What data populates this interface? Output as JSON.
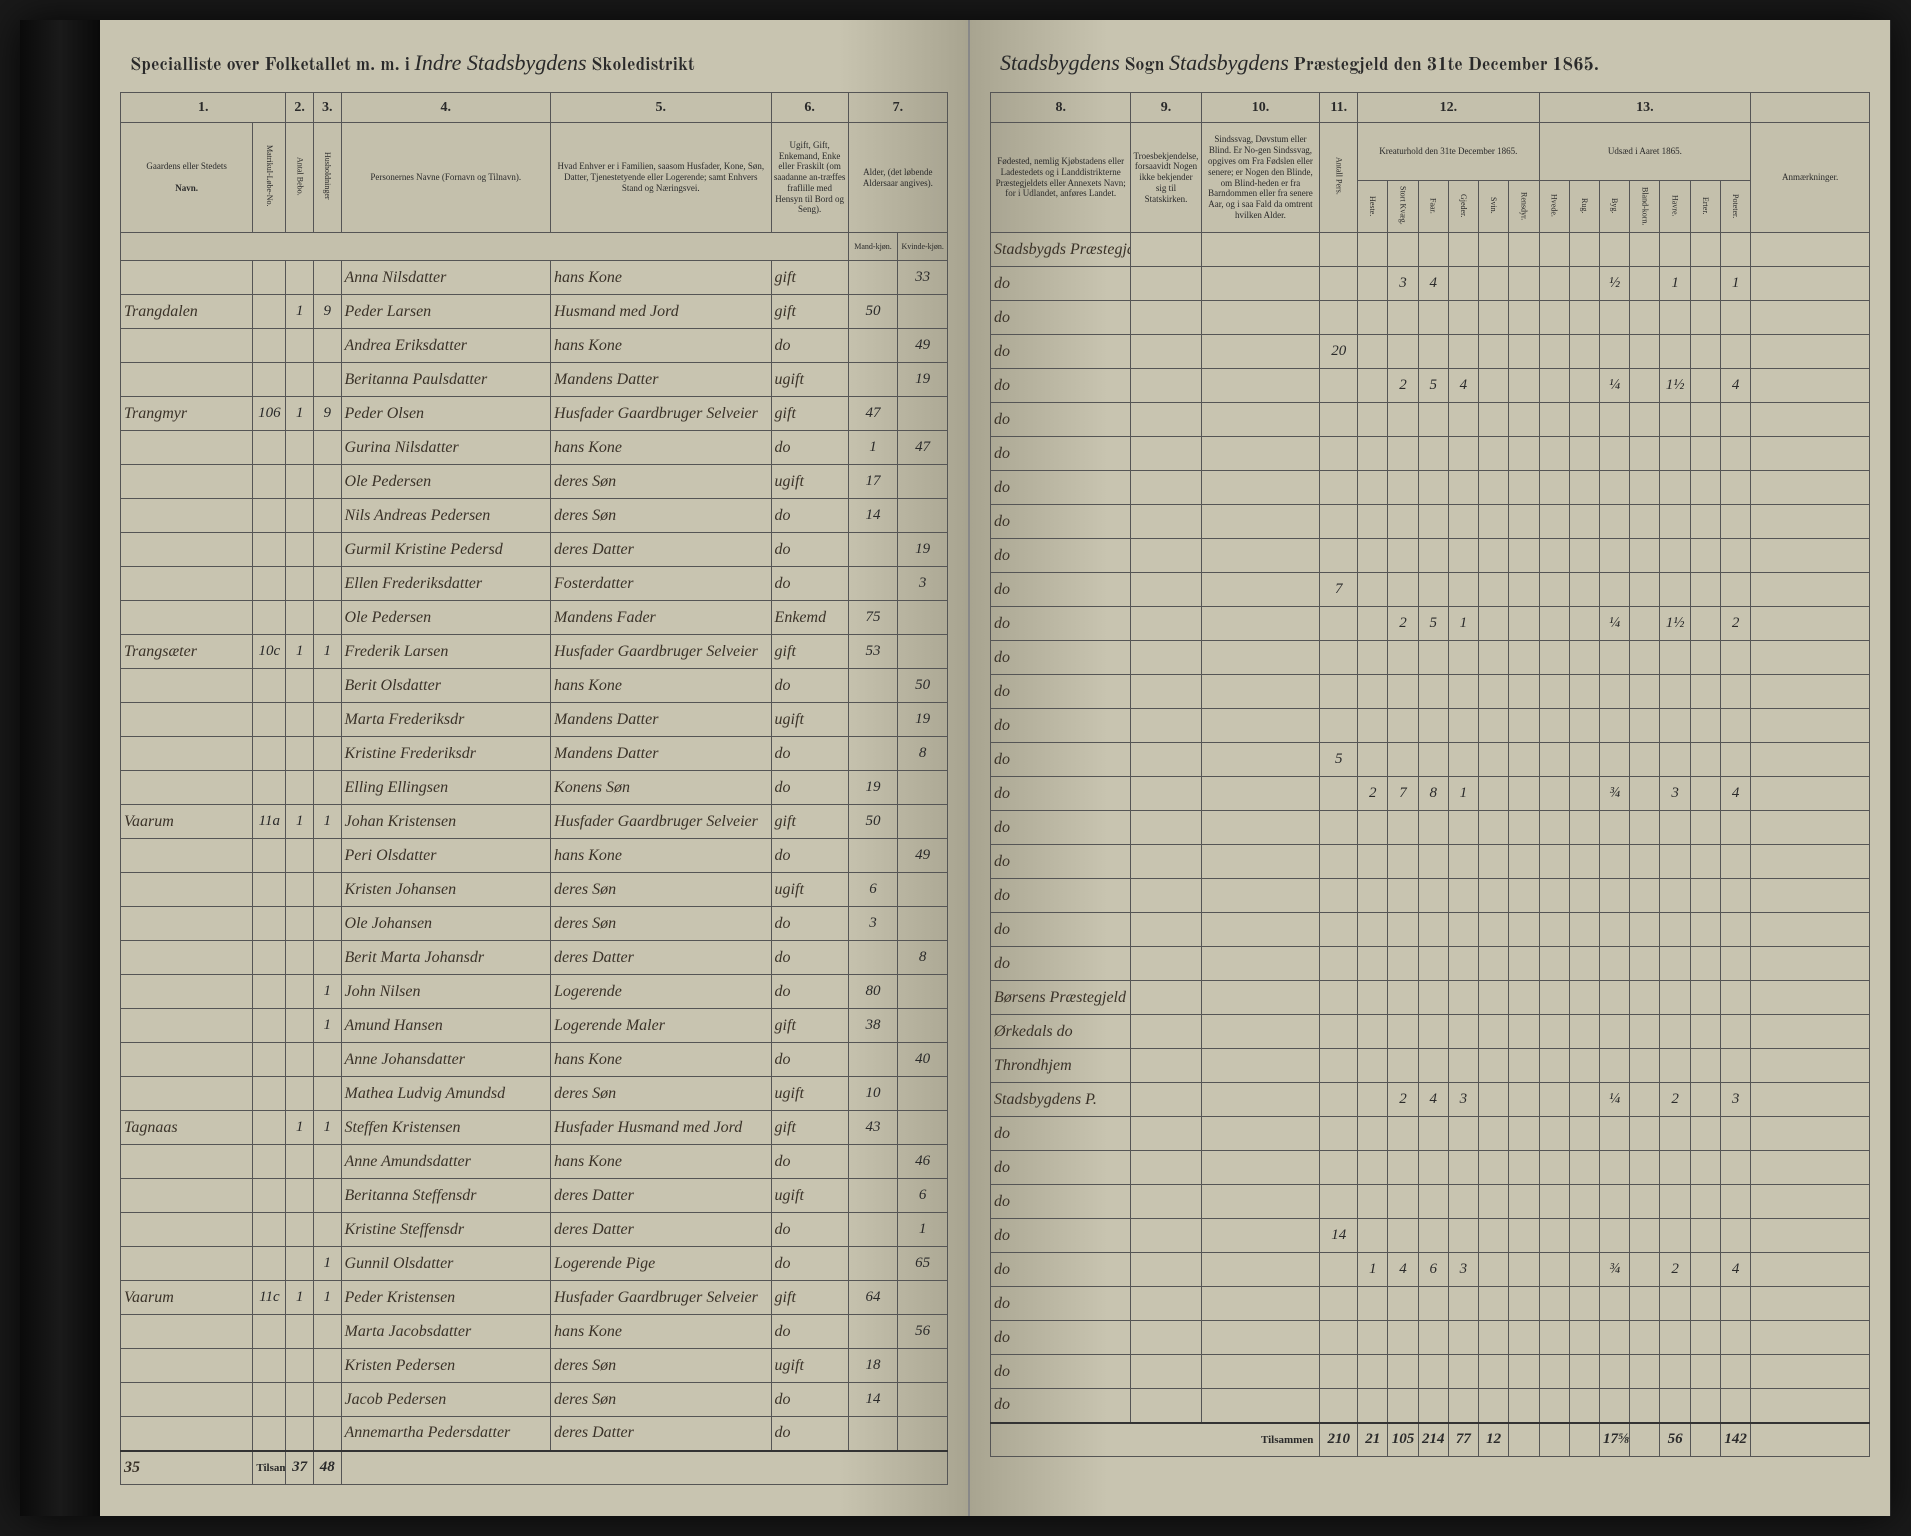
{
  "header": {
    "left_print1": "Specialliste over Folketallet m. m. i",
    "left_script1": "Indre Stadsbygdens",
    "left_print2": "Skoledistrikt",
    "right_script1": "Stadsbygdens",
    "right_print1": "Sogn",
    "right_script2": "Stadsbygdens",
    "right_print2": "Præstegjeld den 31te December",
    "right_year": "1865."
  },
  "left_cols": {
    "c1": "1.",
    "c2": "2.",
    "c3": "3.",
    "c4": "4.",
    "c5": "5.",
    "c6": "6.",
    "c7": "7."
  },
  "left_heads": {
    "h1": "Gaardens eller Stedets",
    "h1_sub": "Navn.",
    "h2a": "Matrikul-Løbe-No.",
    "h2b": "Antal Bebo.",
    "h3": "Husholdninger",
    "h4": "Personernes Navne (Fornavn og Tilnavn).",
    "h5": "Hvad Enhver er i Familien, saasom Husfader, Kone, Søn, Datter, Tjenestetyende eller Logerende; samt Enhvers Stand og Næringsvei.",
    "h6": "Ugift, Gift, Enkemand, Enke eller Fraskilt (om saadanne an-træffes fraflille med Hensyn til Bord og Seng).",
    "h7": "Alder, (det løbende Aldersaar angives).",
    "h7a": "Mand-kjøn.",
    "h7b": "Kvinde-kjøn."
  },
  "right_cols": {
    "c8": "8.",
    "c9": "9.",
    "c10": "10.",
    "c11": "11.",
    "c12": "12.",
    "c13": "13."
  },
  "right_heads": {
    "h8": "Fødested, nemlig Kjøbstadens eller Ladestedets og i Landdistrikterne Præstegjeldets eller Annexets Navn; for i Udlandet, anføres Landet.",
    "h9": "Troesbekjendelse, forsaavidt Nogen ikke bekjender sig til Statskirken.",
    "h10": "Sindssvag, Døvstum eller Blind. Er No-gen Sindssvag, opgives om Fra Fødslen eller senere; er Nogen den Blinde, om Blind-heden er fra Barndommen eller fra senere Aar, og i saa Fald da omtrent hvilken Alder.",
    "h11": "Antall Pers.",
    "h12": "Kreaturhold den 31te December 1865.",
    "h13": "Udsæd i Aaret 1865.",
    "h14": "Anmærkninger.",
    "s12a": "Heste.",
    "s12b": "Stort Kvæg.",
    "s12c": "Faar.",
    "s12d": "Gjeder.",
    "s12e": "Svin.",
    "s12f": "Rensdyr.",
    "s13a": "Hvede.",
    "s13b": "Rug.",
    "s13c": "Byg.",
    "s13d": "Bland-korn.",
    "s13e": "Havre.",
    "s13f": "Erter.",
    "s13g": "Poteter."
  },
  "rows": [
    {
      "gaard": "",
      "mno": "",
      "beb": "",
      "hh": "",
      "navn": "Anna Nilsdatter",
      "fam": "hans Kone",
      "stand": "gift",
      "mk": "",
      "kk": "33",
      "fod": "Stadsbygds Præstegjd",
      "tro": "",
      "sind": "",
      "pers": "",
      "h": "",
      "k": "",
      "f": "",
      "g": "",
      "sv": "",
      "r": "",
      "hv": "",
      "ru": "",
      "by": "",
      "bl": "",
      "ha": "",
      "er": "",
      "po": "",
      "anm": ""
    },
    {
      "gaard": "Trangdalen",
      "mno": "",
      "beb": "1",
      "hh": "9",
      "navn": "Peder Larsen",
      "fam": "Husmand med Jord",
      "stand": "gift",
      "mk": "50",
      "kk": "",
      "fod": "do",
      "tro": "",
      "sind": "",
      "pers": "",
      "h": "",
      "k": "3",
      "f": "4",
      "g": "",
      "sv": "",
      "r": "",
      "hv": "",
      "ru": "",
      "by": "½",
      "bl": "",
      "ha": "1",
      "er": "",
      "po": "1",
      "anm": ""
    },
    {
      "gaard": "",
      "mno": "",
      "beb": "",
      "hh": "",
      "navn": "Andrea Eriksdatter",
      "fam": "hans Kone",
      "stand": "do",
      "mk": "",
      "kk": "49",
      "fod": "do",
      "tro": "",
      "sind": "",
      "pers": "",
      "h": "",
      "k": "",
      "f": "",
      "g": "",
      "sv": "",
      "r": "",
      "hv": "",
      "ru": "",
      "by": "",
      "bl": "",
      "ha": "",
      "er": "",
      "po": "",
      "anm": ""
    },
    {
      "gaard": "",
      "mno": "",
      "beb": "",
      "hh": "",
      "navn": "Beritanna Paulsdatter",
      "fam": "Mandens Datter",
      "stand": "ugift",
      "mk": "",
      "kk": "19",
      "fod": "do",
      "tro": "",
      "sind": "",
      "pers": "20",
      "h": "",
      "k": "",
      "f": "",
      "g": "",
      "sv": "",
      "r": "",
      "hv": "",
      "ru": "",
      "by": "",
      "bl": "",
      "ha": "",
      "er": "",
      "po": "",
      "anm": ""
    },
    {
      "gaard": "Trangmyr",
      "mno": "106",
      "beb": "1",
      "hh": "9",
      "navn": "Peder Olsen",
      "fam": "Husfader Gaardbruger Selveier",
      "stand": "gift",
      "mk": "47",
      "kk": "",
      "fod": "do",
      "tro": "",
      "sind": "",
      "pers": "",
      "h": "",
      "k": "2",
      "f": "5",
      "g": "4",
      "sv": "",
      "r": "",
      "hv": "",
      "ru": "",
      "by": "¼",
      "bl": "",
      "ha": "1½",
      "er": "",
      "po": "4",
      "anm": ""
    },
    {
      "gaard": "",
      "mno": "",
      "beb": "",
      "hh": "",
      "navn": "Gurina Nilsdatter",
      "fam": "hans Kone",
      "stand": "do",
      "mk": "1",
      "kk": "47",
      "fod": "do",
      "tro": "",
      "sind": "",
      "pers": "",
      "h": "",
      "k": "",
      "f": "",
      "g": "",
      "sv": "",
      "r": "",
      "hv": "",
      "ru": "",
      "by": "",
      "bl": "",
      "ha": "",
      "er": "",
      "po": "",
      "anm": ""
    },
    {
      "gaard": "",
      "mno": "",
      "beb": "",
      "hh": "",
      "navn": "Ole Pedersen",
      "fam": "deres Søn",
      "stand": "ugift",
      "mk": "17",
      "kk": "",
      "fod": "do",
      "tro": "",
      "sind": "",
      "pers": "",
      "h": "",
      "k": "",
      "f": "",
      "g": "",
      "sv": "",
      "r": "",
      "hv": "",
      "ru": "",
      "by": "",
      "bl": "",
      "ha": "",
      "er": "",
      "po": "",
      "anm": ""
    },
    {
      "gaard": "",
      "mno": "",
      "beb": "",
      "hh": "",
      "navn": "Nils Andreas Pedersen",
      "fam": "deres Søn",
      "stand": "do",
      "mk": "14",
      "kk": "",
      "fod": "do",
      "tro": "",
      "sind": "",
      "pers": "",
      "h": "",
      "k": "",
      "f": "",
      "g": "",
      "sv": "",
      "r": "",
      "hv": "",
      "ru": "",
      "by": "",
      "bl": "",
      "ha": "",
      "er": "",
      "po": "",
      "anm": ""
    },
    {
      "gaard": "",
      "mno": "",
      "beb": "",
      "hh": "",
      "navn": "Gurmil Kristine Pedersd",
      "fam": "deres Datter",
      "stand": "do",
      "mk": "",
      "kk": "19",
      "fod": "do",
      "tro": "",
      "sind": "",
      "pers": "",
      "h": "",
      "k": "",
      "f": "",
      "g": "",
      "sv": "",
      "r": "",
      "hv": "",
      "ru": "",
      "by": "",
      "bl": "",
      "ha": "",
      "er": "",
      "po": "",
      "anm": ""
    },
    {
      "gaard": "",
      "mno": "",
      "beb": "",
      "hh": "",
      "navn": "Ellen Frederiksdatter",
      "fam": "Fosterdatter",
      "stand": "do",
      "mk": "",
      "kk": "3",
      "fod": "do",
      "tro": "",
      "sind": "",
      "pers": "",
      "h": "",
      "k": "",
      "f": "",
      "g": "",
      "sv": "",
      "r": "",
      "hv": "",
      "ru": "",
      "by": "",
      "bl": "",
      "ha": "",
      "er": "",
      "po": "",
      "anm": ""
    },
    {
      "gaard": "",
      "mno": "",
      "beb": "",
      "hh": "",
      "navn": "Ole Pedersen",
      "fam": "Mandens Fader",
      "stand": "Enkemd",
      "mk": "75",
      "kk": "",
      "fod": "do",
      "tro": "",
      "sind": "",
      "pers": "7",
      "h": "",
      "k": "",
      "f": "",
      "g": "",
      "sv": "",
      "r": "",
      "hv": "",
      "ru": "",
      "by": "",
      "bl": "",
      "ha": "",
      "er": "",
      "po": "",
      "anm": ""
    },
    {
      "gaard": "Trangsæter",
      "mno": "10c",
      "beb": "1",
      "hh": "1",
      "navn": "Frederik Larsen",
      "fam": "Husfader Gaardbruger Selveier",
      "stand": "gift",
      "mk": "53",
      "kk": "",
      "fod": "do",
      "tro": "",
      "sind": "",
      "pers": "",
      "h": "",
      "k": "2",
      "f": "5",
      "g": "1",
      "sv": "",
      "r": "",
      "hv": "",
      "ru": "",
      "by": "¼",
      "bl": "",
      "ha": "1½",
      "er": "",
      "po": "2",
      "anm": ""
    },
    {
      "gaard": "",
      "mno": "",
      "beb": "",
      "hh": "",
      "navn": "Berit Olsdatter",
      "fam": "hans Kone",
      "stand": "do",
      "mk": "",
      "kk": "50",
      "fod": "do",
      "tro": "",
      "sind": "",
      "pers": "",
      "h": "",
      "k": "",
      "f": "",
      "g": "",
      "sv": "",
      "r": "",
      "hv": "",
      "ru": "",
      "by": "",
      "bl": "",
      "ha": "",
      "er": "",
      "po": "",
      "anm": ""
    },
    {
      "gaard": "",
      "mno": "",
      "beb": "",
      "hh": "",
      "navn": "Marta Frederiksdr",
      "fam": "Mandens Datter",
      "stand": "ugift",
      "mk": "",
      "kk": "19",
      "fod": "do",
      "tro": "",
      "sind": "",
      "pers": "",
      "h": "",
      "k": "",
      "f": "",
      "g": "",
      "sv": "",
      "r": "",
      "hv": "",
      "ru": "",
      "by": "",
      "bl": "",
      "ha": "",
      "er": "",
      "po": "",
      "anm": ""
    },
    {
      "gaard": "",
      "mno": "",
      "beb": "",
      "hh": "",
      "navn": "Kristine Frederiksdr",
      "fam": "Mandens Datter",
      "stand": "do",
      "mk": "",
      "kk": "8",
      "fod": "do",
      "tro": "",
      "sind": "",
      "pers": "",
      "h": "",
      "k": "",
      "f": "",
      "g": "",
      "sv": "",
      "r": "",
      "hv": "",
      "ru": "",
      "by": "",
      "bl": "",
      "ha": "",
      "er": "",
      "po": "",
      "anm": ""
    },
    {
      "gaard": "",
      "mno": "",
      "beb": "",
      "hh": "",
      "navn": "Elling Ellingsen",
      "fam": "Konens Søn",
      "stand": "do",
      "mk": "19",
      "kk": "",
      "fod": "do",
      "tro": "",
      "sind": "",
      "pers": "5",
      "h": "",
      "k": "",
      "f": "",
      "g": "",
      "sv": "",
      "r": "",
      "hv": "",
      "ru": "",
      "by": "",
      "bl": "",
      "ha": "",
      "er": "",
      "po": "",
      "anm": ""
    },
    {
      "gaard": "Vaarum",
      "mno": "11a",
      "beb": "1",
      "hh": "1",
      "navn": "Johan Kristensen",
      "fam": "Husfader Gaardbruger Selveier",
      "stand": "gift",
      "mk": "50",
      "kk": "",
      "fod": "do",
      "tro": "",
      "sind": "",
      "pers": "",
      "h": "2",
      "k": "7",
      "f": "8",
      "g": "1",
      "sv": "",
      "r": "",
      "hv": "",
      "ru": "",
      "by": "¾",
      "bl": "",
      "ha": "3",
      "er": "",
      "po": "4",
      "anm": ""
    },
    {
      "gaard": "",
      "mno": "",
      "beb": "",
      "hh": "",
      "navn": "Peri Olsdatter",
      "fam": "hans Kone",
      "stand": "do",
      "mk": "",
      "kk": "49",
      "fod": "do",
      "tro": "",
      "sind": "",
      "pers": "",
      "h": "",
      "k": "",
      "f": "",
      "g": "",
      "sv": "",
      "r": "",
      "hv": "",
      "ru": "",
      "by": "",
      "bl": "",
      "ha": "",
      "er": "",
      "po": "",
      "anm": ""
    },
    {
      "gaard": "",
      "mno": "",
      "beb": "",
      "hh": "",
      "navn": "Kristen Johansen",
      "fam": "deres Søn",
      "stand": "ugift",
      "mk": "6",
      "kk": "",
      "fod": "do",
      "tro": "",
      "sind": "",
      "pers": "",
      "h": "",
      "k": "",
      "f": "",
      "g": "",
      "sv": "",
      "r": "",
      "hv": "",
      "ru": "",
      "by": "",
      "bl": "",
      "ha": "",
      "er": "",
      "po": "",
      "anm": ""
    },
    {
      "gaard": "",
      "mno": "",
      "beb": "",
      "hh": "",
      "navn": "Ole Johansen",
      "fam": "deres Søn",
      "stand": "do",
      "mk": "3",
      "kk": "",
      "fod": "do",
      "tro": "",
      "sind": "",
      "pers": "",
      "h": "",
      "k": "",
      "f": "",
      "g": "",
      "sv": "",
      "r": "",
      "hv": "",
      "ru": "",
      "by": "",
      "bl": "",
      "ha": "",
      "er": "",
      "po": "",
      "anm": ""
    },
    {
      "gaard": "",
      "mno": "",
      "beb": "",
      "hh": "",
      "navn": "Berit Marta Johansdr",
      "fam": "deres Datter",
      "stand": "do",
      "mk": "",
      "kk": "8",
      "fod": "do",
      "tro": "",
      "sind": "",
      "pers": "",
      "h": "",
      "k": "",
      "f": "",
      "g": "",
      "sv": "",
      "r": "",
      "hv": "",
      "ru": "",
      "by": "",
      "bl": "",
      "ha": "",
      "er": "",
      "po": "",
      "anm": ""
    },
    {
      "gaard": "",
      "mno": "",
      "beb": "",
      "hh": "1",
      "navn": "John Nilsen",
      "fam": "Logerende",
      "stand": "do",
      "mk": "80",
      "kk": "",
      "fod": "do",
      "tro": "",
      "sind": "",
      "pers": "",
      "h": "",
      "k": "",
      "f": "",
      "g": "",
      "sv": "",
      "r": "",
      "hv": "",
      "ru": "",
      "by": "",
      "bl": "",
      "ha": "",
      "er": "",
      "po": "",
      "anm": ""
    },
    {
      "gaard": "",
      "mno": "",
      "beb": "",
      "hh": "1",
      "navn": "Amund Hansen",
      "fam": "Logerende Maler",
      "stand": "gift",
      "mk": "38",
      "kk": "",
      "fod": "Børsens Præstegjeld",
      "tro": "",
      "sind": "",
      "pers": "",
      "h": "",
      "k": "",
      "f": "",
      "g": "",
      "sv": "",
      "r": "",
      "hv": "",
      "ru": "",
      "by": "",
      "bl": "",
      "ha": "",
      "er": "",
      "po": "",
      "anm": ""
    },
    {
      "gaard": "",
      "mno": "",
      "beb": "",
      "hh": "",
      "navn": "Anne Johansdatter",
      "fam": "hans Kone",
      "stand": "do",
      "mk": "",
      "kk": "40",
      "fod": "Ørkedals do",
      "tro": "",
      "sind": "",
      "pers": "",
      "h": "",
      "k": "",
      "f": "",
      "g": "",
      "sv": "",
      "r": "",
      "hv": "",
      "ru": "",
      "by": "",
      "bl": "",
      "ha": "",
      "er": "",
      "po": "",
      "anm": ""
    },
    {
      "gaard": "",
      "mno": "",
      "beb": "",
      "hh": "",
      "navn": "Mathea Ludvig Amundsd",
      "fam": "deres Søn",
      "stand": "ugift",
      "mk": "10",
      "kk": "",
      "fod": "Throndhjem",
      "tro": "",
      "sind": "",
      "pers": "",
      "h": "",
      "k": "",
      "f": "",
      "g": "",
      "sv": "",
      "r": "",
      "hv": "",
      "ru": "",
      "by": "",
      "bl": "",
      "ha": "",
      "er": "",
      "po": "",
      "anm": ""
    },
    {
      "gaard": "Tagnaas",
      "mno": "",
      "beb": "1",
      "hh": "1",
      "navn": "Steffen Kristensen",
      "fam": "Husfader Husmand med Jord",
      "stand": "gift",
      "mk": "43",
      "kk": "",
      "fod": "Stadsbygdens P.",
      "tro": "",
      "sind": "",
      "pers": "",
      "h": "",
      "k": "2",
      "f": "4",
      "g": "3",
      "sv": "",
      "r": "",
      "hv": "",
      "ru": "",
      "by": "¼",
      "bl": "",
      "ha": "2",
      "er": "",
      "po": "3",
      "anm": ""
    },
    {
      "gaard": "",
      "mno": "",
      "beb": "",
      "hh": "",
      "navn": "Anne Amundsdatter",
      "fam": "hans Kone",
      "stand": "do",
      "mk": "",
      "kk": "46",
      "fod": "do",
      "tro": "",
      "sind": "",
      "pers": "",
      "h": "",
      "k": "",
      "f": "",
      "g": "",
      "sv": "",
      "r": "",
      "hv": "",
      "ru": "",
      "by": "",
      "bl": "",
      "ha": "",
      "er": "",
      "po": "",
      "anm": ""
    },
    {
      "gaard": "",
      "mno": "",
      "beb": "",
      "hh": "",
      "navn": "Beritanna Steffensdr",
      "fam": "deres Datter",
      "stand": "ugift",
      "mk": "",
      "kk": "6",
      "fod": "do",
      "tro": "",
      "sind": "",
      "pers": "",
      "h": "",
      "k": "",
      "f": "",
      "g": "",
      "sv": "",
      "r": "",
      "hv": "",
      "ru": "",
      "by": "",
      "bl": "",
      "ha": "",
      "er": "",
      "po": "",
      "anm": ""
    },
    {
      "gaard": "",
      "mno": "",
      "beb": "",
      "hh": "",
      "navn": "Kristine Steffensdr",
      "fam": "deres Datter",
      "stand": "do",
      "mk": "",
      "kk": "1",
      "fod": "do",
      "tro": "",
      "sind": "",
      "pers": "",
      "h": "",
      "k": "",
      "f": "",
      "g": "",
      "sv": "",
      "r": "",
      "hv": "",
      "ru": "",
      "by": "",
      "bl": "",
      "ha": "",
      "er": "",
      "po": "",
      "anm": ""
    },
    {
      "gaard": "",
      "mno": "",
      "beb": "",
      "hh": "1",
      "navn": "Gunnil Olsdatter",
      "fam": "Logerende Pige",
      "stand": "do",
      "mk": "",
      "kk": "65",
      "fod": "do",
      "tro": "",
      "sind": "",
      "pers": "14",
      "h": "",
      "k": "",
      "f": "",
      "g": "",
      "sv": "",
      "r": "",
      "hv": "",
      "ru": "",
      "by": "",
      "bl": "",
      "ha": "",
      "er": "",
      "po": "",
      "anm": ""
    },
    {
      "gaard": "Vaarum",
      "mno": "11c",
      "beb": "1",
      "hh": "1",
      "navn": "Peder Kristensen",
      "fam": "Husfader Gaardbruger Selveier",
      "stand": "gift",
      "mk": "64",
      "kk": "",
      "fod": "do",
      "tro": "",
      "sind": "",
      "pers": "",
      "h": "1",
      "k": "4",
      "f": "6",
      "g": "3",
      "sv": "",
      "r": "",
      "hv": "",
      "ru": "",
      "by": "¾",
      "bl": "",
      "ha": "2",
      "er": "",
      "po": "4",
      "anm": ""
    },
    {
      "gaard": "",
      "mno": "",
      "beb": "",
      "hh": "",
      "navn": "Marta Jacobsdatter",
      "fam": "hans Kone",
      "stand": "do",
      "mk": "",
      "kk": "56",
      "fod": "do",
      "tro": "",
      "sind": "",
      "pers": "",
      "h": "",
      "k": "",
      "f": "",
      "g": "",
      "sv": "",
      "r": "",
      "hv": "",
      "ru": "",
      "by": "",
      "bl": "",
      "ha": "",
      "er": "",
      "po": "",
      "anm": ""
    },
    {
      "gaard": "",
      "mno": "",
      "beb": "",
      "hh": "",
      "navn": "Kristen Pedersen",
      "fam": "deres Søn",
      "stand": "ugift",
      "mk": "18",
      "kk": "",
      "fod": "do",
      "tro": "",
      "sind": "",
      "pers": "",
      "h": "",
      "k": "",
      "f": "",
      "g": "",
      "sv": "",
      "r": "",
      "hv": "",
      "ru": "",
      "by": "",
      "bl": "",
      "ha": "",
      "er": "",
      "po": "",
      "anm": ""
    },
    {
      "gaard": "",
      "mno": "",
      "beb": "",
      "hh": "",
      "navn": "Jacob Pedersen",
      "fam": "deres Søn",
      "stand": "do",
      "mk": "14",
      "kk": "",
      "fod": "do",
      "tro": "",
      "sind": "",
      "pers": "",
      "h": "",
      "k": "",
      "f": "",
      "g": "",
      "sv": "",
      "r": "",
      "hv": "",
      "ru": "",
      "by": "",
      "bl": "",
      "ha": "",
      "er": "",
      "po": "",
      "anm": ""
    },
    {
      "gaard": "",
      "mno": "",
      "beb": "",
      "hh": "",
      "navn": "Annemartha Pedersdatter",
      "fam": "deres Datter",
      "stand": "do",
      "mk": "",
      "kk": "",
      "fod": "do",
      "tro": "",
      "sind": "",
      "pers": "",
      "h": "",
      "k": "",
      "f": "",
      "g": "",
      "sv": "",
      "r": "",
      "hv": "",
      "ru": "",
      "by": "",
      "bl": "",
      "ha": "",
      "er": "",
      "po": "",
      "anm": ""
    }
  ],
  "totals": {
    "label_left": "Tilsammen",
    "label_right": "Tilsammen",
    "beb": "37",
    "hh": "48",
    "pers": "210",
    "h": "21",
    "k": "105",
    "f": "214",
    "g": "77",
    "sv": "12",
    "r": "",
    "hv": "",
    "ru": "",
    "by": "17⅝",
    "bl": "",
    "ha": "56",
    "er": "",
    "po": "142"
  },
  "page_number": "35"
}
